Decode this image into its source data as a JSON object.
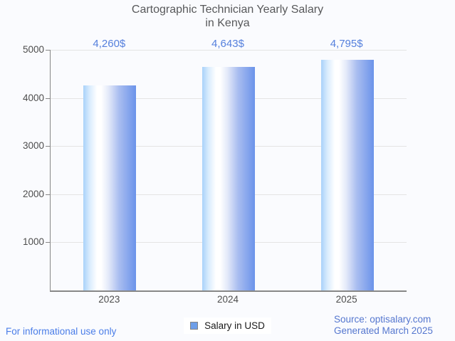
{
  "title": {
    "line1": "Cartographic Technician Yearly Salary",
    "line2": "in Kenya"
  },
  "chart_data": {
    "type": "bar",
    "title": "Cartographic Technician Yearly Salary in Kenya",
    "categories": [
      "2023",
      "2024",
      "2025"
    ],
    "series": [
      {
        "name": "Salary in USD",
        "values": [
          4260,
          4643,
          4795
        ]
      }
    ],
    "value_labels": [
      "4,260$",
      "4,643$",
      "4,795$"
    ],
    "xlabel": "",
    "ylabel": "",
    "ylim": [
      0,
      5000
    ],
    "yticks": [
      1000,
      2000,
      3000,
      4000,
      5000
    ],
    "grid": "horizontal",
    "legend_position": "bottom-center"
  },
  "legend": {
    "label": "Salary in USD"
  },
  "footer": {
    "note": "For informational use only",
    "source_line1": "Source: optisalary.com",
    "source_line2": "Generated March 2025"
  },
  "colors": {
    "background": "#fafbfe",
    "title_text": "#58595b",
    "axis_text": "#4d4d4d",
    "axis_line": "#878787",
    "gridline": "#e4e4e4",
    "bar_gradient_left": "#a9d2fa",
    "bar_gradient_mid": "#ffffff",
    "bar_gradient_right": "#6b93ea",
    "value_label": "#5580dd",
    "legend_swatch": "#6d9ee8",
    "legend_text": "#1a1a1a",
    "note_text": "#4a7de8",
    "source_text": "#5577cf"
  }
}
